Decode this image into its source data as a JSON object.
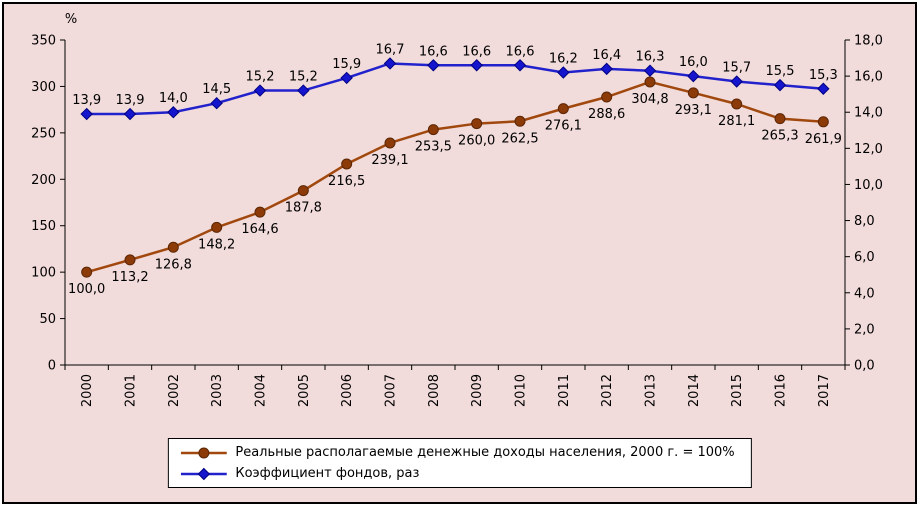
{
  "chart_data": {
    "type": "line",
    "background": "#F2DCDB",
    "grid": false,
    "legend_position": "bottom",
    "categories": [
      "2000",
      "2001",
      "2002",
      "2003",
      "2004",
      "2005",
      "2006",
      "2007",
      "2008",
      "2009",
      "2010",
      "2011",
      "2012",
      "2013",
      "2014",
      "2015",
      "2016",
      "2017"
    ],
    "left_axis": {
      "label": "%",
      "min": 0,
      "max": 350,
      "step": 50,
      "ticks": [
        "0",
        "50",
        "100",
        "150",
        "200",
        "250",
        "300",
        "350"
      ]
    },
    "right_axis": {
      "min": 0,
      "max": 18,
      "step": 2,
      "ticks": [
        "0,0",
        "2,0",
        "4,0",
        "6,0",
        "8,0",
        "10,0",
        "12,0",
        "14,0",
        "16,0",
        "18,0"
      ]
    },
    "series": [
      {
        "name": "Реальные располагаемые денежные доходы населения, 2000 г. = 100%",
        "axis": "left",
        "color": "#A0480E",
        "marker": "circle",
        "marker_fill": "#8B3A08",
        "marker_stroke": "#5C2605",
        "label_position": "below",
        "values": [
          100.0,
          113.2,
          126.8,
          148.2,
          164.6,
          187.8,
          216.5,
          239.1,
          253.5,
          260.0,
          262.5,
          276.1,
          288.6,
          304.8,
          293.1,
          281.1,
          265.3,
          261.9
        ],
        "labels": [
          "100,0",
          "113,2",
          "126,8",
          "148,2",
          "164,6",
          "187,8",
          "216,5",
          "239,1",
          "253,5",
          "260,0",
          "262,5",
          "276,1",
          "288,6",
          "304,8",
          "293,1",
          "281,1",
          "265,3",
          "261,9"
        ]
      },
      {
        "name": "Коэффициент фондов, раз",
        "axis": "right",
        "color": "#2222CC",
        "marker": "diamond",
        "marker_fill": "#1515CD",
        "marker_stroke": "#000080",
        "label_position": "above",
        "values": [
          13.9,
          13.9,
          14.0,
          14.5,
          15.2,
          15.2,
          15.9,
          16.7,
          16.6,
          16.6,
          16.6,
          16.2,
          16.4,
          16.3,
          16.0,
          15.7,
          15.5,
          15.3
        ],
        "labels": [
          "13,9",
          "13,9",
          "14,0",
          "14,5",
          "15,2",
          "15,2",
          "15,9",
          "16,7",
          "16,6",
          "16,6",
          "16,6",
          "16,2",
          "16,4",
          "16,3",
          "16,0",
          "15,7",
          "15,5",
          "15,3"
        ]
      }
    ]
  }
}
